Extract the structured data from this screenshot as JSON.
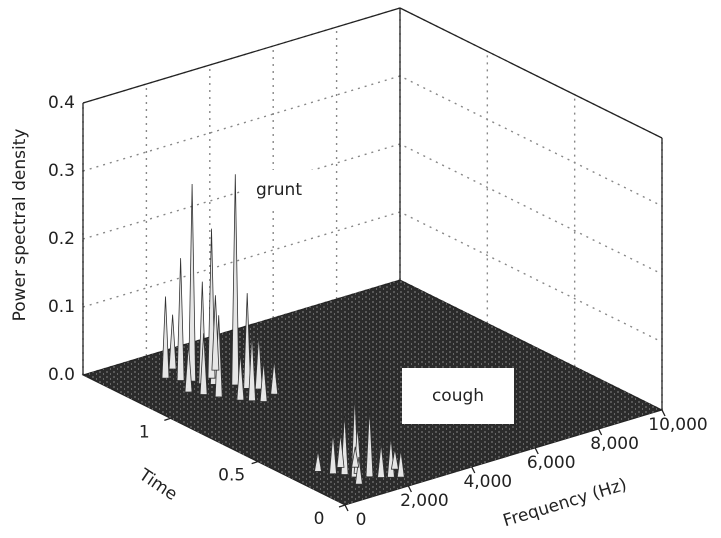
{
  "chart_data": {
    "type": "spikes3d",
    "xlabel": "Frequency (Hz)",
    "ylabel": "Time",
    "zlabel": "Power spectral density",
    "xlim": [
      0,
      10000
    ],
    "ylim": [
      0,
      1.5
    ],
    "zlim": [
      0,
      0.4
    ],
    "xticks": [
      0,
      {
        "value": 2000,
        "label": "2,000"
      },
      {
        "value": 4000,
        "label": "4,000"
      },
      {
        "value": 6000,
        "label": "6,000"
      },
      {
        "value": 8000,
        "label": "8,000"
      },
      {
        "value": 10000,
        "label": "10,000"
      }
    ],
    "yticks": [
      0,
      0.5,
      1
    ],
    "zticks": [
      {
        "value": 0,
        "label": "0.0"
      },
      0.1,
      0.2,
      0.3,
      0.4
    ],
    "grid": true,
    "color": "#e6e6e6",
    "floor_color": "#2b2b2b",
    "annotations": [
      "grunt",
      "cough"
    ],
    "x": [
      1500,
      1700,
      1900,
      2000,
      2200,
      2400,
      2600,
      2700,
      2900,
      1600,
      1800,
      2100,
      2300,
      2500,
      1400,
      3000,
      2800,
      2000,
      800,
      1000,
      1200,
      1300,
      1500,
      1600,
      1800,
      2000,
      2200,
      1100,
      1400,
      1700,
      2400
    ],
    "y": [
      1.3,
      1.25,
      1.22,
      1.18,
      1.15,
      1.2,
      1.1,
      1.05,
      1.02,
      1.1,
      1.05,
      0.98,
      0.95,
      0.92,
      1.15,
      0.95,
      1.25,
      1.35,
      0.3,
      0.25,
      0.22,
      0.18,
      0.2,
      0.15,
      0.12,
      0.1,
      0.08,
      0.12,
      0.28,
      0.25,
      0.15
    ],
    "values": [
      0.12,
      0.18,
      0.29,
      0.15,
      0.1,
      0.22,
      0.31,
      0.14,
      0.08,
      0.09,
      0.12,
      0.07,
      0.1,
      0.06,
      0.07,
      0.05,
      0.11,
      0.08,
      0.03,
      0.06,
      0.09,
      0.12,
      0.07,
      0.1,
      0.05,
      0.06,
      0.04,
      0.04,
      0.05,
      0.03,
      0.03
    ]
  }
}
